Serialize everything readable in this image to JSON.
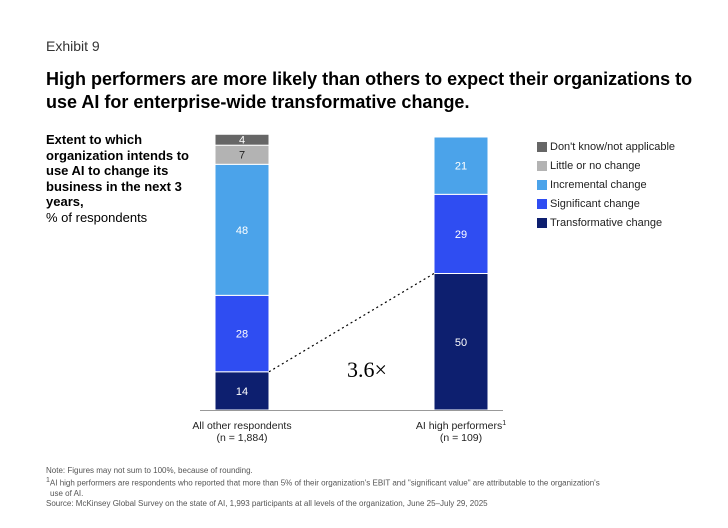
{
  "exhibit_label": "Exhibit 9",
  "title": "High performers are more likely than others to expect their organizations to use AI for enterprise-wide transformative change.",
  "subtitle_bold": "Extent to which organization intends to use AI to change its business in the next 3 years,",
  "subtitle_unit": "% of respondents",
  "multiplier_label": "3.6×",
  "colors": {
    "dont_know": "#666666",
    "little": "#b3b3b3",
    "incremental": "#4ba3ea",
    "significant": "#2f4df2",
    "transformative": "#0d1f6f"
  },
  "chart_data": {
    "type": "bar",
    "stacked": true,
    "title": "Extent to which organization intends to use AI to change its business in the next 3 years",
    "ylabel": "% of respondents",
    "ylim": [
      0,
      100
    ],
    "grid": false,
    "legend_position": "right",
    "categories": [
      {
        "label": "All other respondents",
        "n": "(n = 1,884)",
        "footnote": ""
      },
      {
        "label": "AI high performers",
        "n": "(n = 109)",
        "footnote": "1"
      }
    ],
    "series": [
      {
        "name": "Transformative change",
        "key": "transformative",
        "values": [
          14,
          50
        ]
      },
      {
        "name": "Significant change",
        "key": "significant",
        "values": [
          28,
          29
        ]
      },
      {
        "name": "Incremental change",
        "key": "incremental",
        "values": [
          48,
          21
        ]
      },
      {
        "name": "Little or no change",
        "key": "little",
        "values": [
          7,
          0
        ]
      },
      {
        "name": "Don't know/not applicable",
        "key": "dont_know",
        "values": [
          4,
          0
        ]
      }
    ],
    "legend_order": [
      "dont_know",
      "little",
      "incremental",
      "significant",
      "transformative"
    ]
  },
  "notes": {
    "note": "Note: Figures may not sum to 100%, because of rounding.",
    "footnote_marker": "1",
    "footnote_line1": "AI high performers are respondents who reported that more than 5% of their organization's EBIT and \"significant value\" are attributable to the organization's",
    "footnote_line2": "use of AI.",
    "source": "Source: McKinsey Global Survey on the state of AI, 1,993 participants at all levels of the organization, June 25–July 29, 2025"
  }
}
